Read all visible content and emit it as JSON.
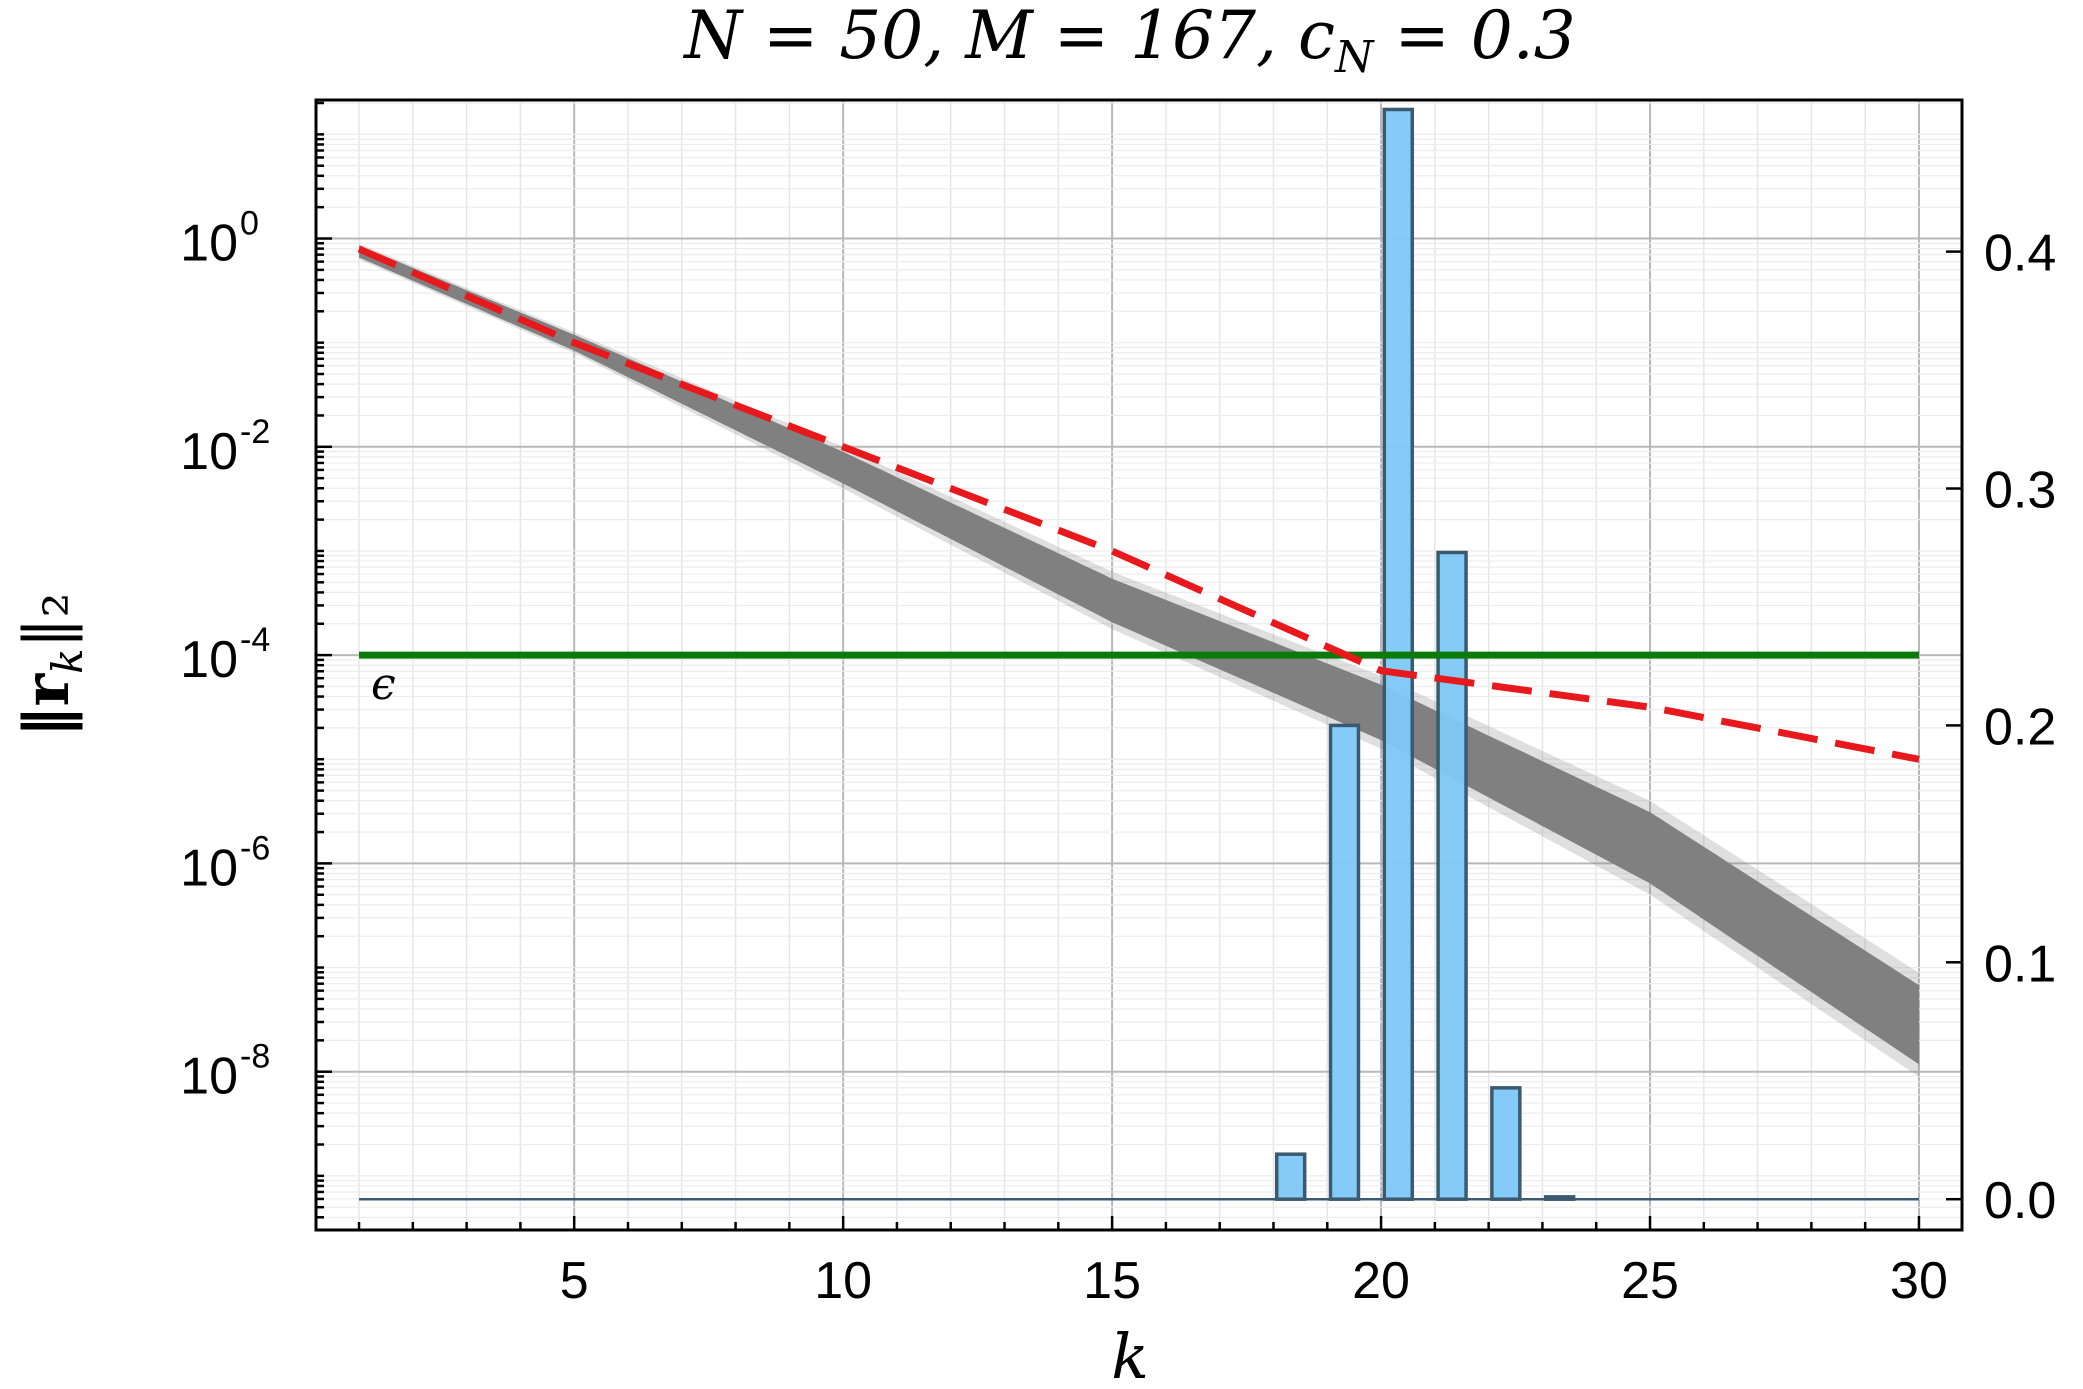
{
  "chart_data": {
    "type": "bar",
    "title": "N = 50, M = 167, c_N = 0.3",
    "xlabel": "k",
    "ylabel": "‖r_k‖₂",
    "xlim": [
      0.2,
      30.8
    ],
    "xticks": [
      5,
      10,
      15,
      20,
      25,
      30
    ],
    "left_axis": {
      "scale": "log",
      "ylim_log10": [
        -9.52,
        1.33
      ],
      "tick_labels": [
        {
          "base": "10",
          "exp": "0",
          "log10": 0
        },
        {
          "base": "10",
          "exp": "-2",
          "log10": -2
        },
        {
          "base": "10",
          "exp": "-4",
          "log10": -4
        },
        {
          "base": "10",
          "exp": "-6",
          "log10": -6
        },
        {
          "base": "10",
          "exp": "-8",
          "log10": -8
        }
      ]
    },
    "right_axis": {
      "scale": "linear",
      "ylim": [
        -0.013,
        0.464
      ],
      "tick_labels": [
        "0.0",
        "0.1",
        "0.2",
        "0.3",
        "0.4"
      ],
      "tick_values": [
        0.0,
        0.1,
        0.2,
        0.3,
        0.4
      ]
    },
    "grid": true,
    "series": [
      {
        "type": "band",
        "axis": "left",
        "color": "#808080",
        "x": [
          1,
          5,
          10,
          15,
          20,
          25,
          30
        ],
        "upper_log10": [
          -0.05,
          -0.9,
          -2.0,
          -3.2,
          -4.2,
          -5.4,
          -7.05
        ],
        "lower_log10": [
          -0.2,
          -1.1,
          -2.4,
          -3.75,
          -4.9,
          -6.3,
          -8.05
        ]
      },
      {
        "type": "line",
        "axis": "left",
        "color": "#e8191c",
        "dashed": true,
        "x": [
          1,
          5,
          10,
          15,
          20,
          25,
          30
        ],
        "y_log10": [
          -0.1,
          -1.0,
          -2.0,
          -3.0,
          -4.15,
          -4.5,
          -5.0
        ]
      },
      {
        "type": "hline",
        "axis": "left",
        "color": "#0a7a0a",
        "y_log10": -4.0,
        "x": [
          1,
          30
        ],
        "label": "ϵ"
      },
      {
        "type": "bar",
        "axis": "right",
        "color": "#7ec8f7",
        "edge_color": "#3b5a70",
        "categories": [
          18,
          19,
          20,
          21,
          22,
          23
        ],
        "values": [
          0.019,
          0.2,
          0.46,
          0.273,
          0.047,
          0.001
        ]
      }
    ]
  }
}
